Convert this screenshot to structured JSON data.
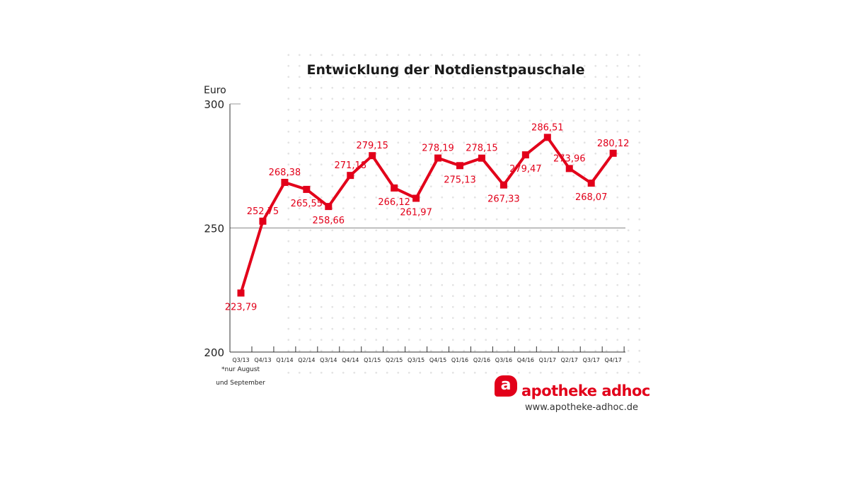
{
  "chart_data": {
    "type": "line",
    "title": "Entwicklung der Notdienstpauschale",
    "ylabel": "Euro",
    "ylim": [
      200,
      300
    ],
    "yticks": [
      200,
      250,
      300
    ],
    "categories": [
      "Q3/13",
      "Q4/13",
      "Q1/14",
      "Q2/14",
      "Q3/14",
      "Q4/14",
      "Q1/15",
      "Q2/15",
      "Q3/15",
      "Q4/15",
      "Q1/16",
      "Q2/16",
      "Q3/16",
      "Q4/16",
      "Q1/17",
      "Q2/17",
      "Q3/17",
      "Q4/17"
    ],
    "values": [
      223.79,
      252.75,
      268.38,
      265.55,
      258.66,
      271.18,
      279.15,
      266.12,
      261.97,
      278.19,
      275.13,
      278.15,
      267.33,
      279.47,
      286.51,
      273.96,
      268.07,
      280.12
    ],
    "data_labels": [
      "223,79",
      "252,75",
      "268,38",
      "265,55",
      "258,66",
      "271,18",
      "279,15",
      "266,12",
      "261,97",
      "278,19",
      "275,13",
      "278,15",
      "267,33",
      "279,47",
      "286,51",
      "273,96",
      "268,07",
      "280,12"
    ],
    "label_position": [
      "below",
      "above",
      "above",
      "below",
      "below",
      "above",
      "above",
      "below",
      "below",
      "above",
      "below",
      "above",
      "below",
      "below",
      "above",
      "above",
      "below",
      "above"
    ],
    "series_color": "#e2001a",
    "gridline_at": 250,
    "footnote": [
      "*nur August",
      "und September"
    ]
  },
  "branding": {
    "name": "apotheke adhoc",
    "logo_letter": "a",
    "url": "www.apotheke-adhoc.de",
    "color": "#e2001a"
  }
}
